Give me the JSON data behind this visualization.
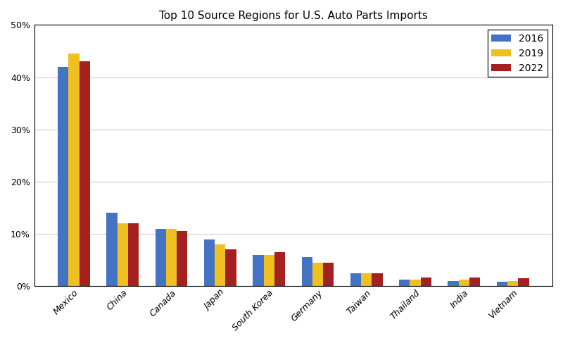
{
  "title": "Top 10 Source Regions for U.S. Auto Parts Imports",
  "categories": [
    "Mexico",
    "China",
    "Canada",
    "Japan",
    "South Korea",
    "Germany",
    "Taiwan",
    "Thailand",
    "India",
    "Vietnam"
  ],
  "years": [
    "2016",
    "2019",
    "2022"
  ],
  "values": {
    "2016": [
      42.0,
      14.0,
      11.0,
      9.0,
      6.0,
      5.5,
      2.5,
      1.2,
      1.0,
      0.8
    ],
    "2019": [
      44.5,
      12.0,
      11.0,
      8.0,
      6.0,
      4.5,
      2.5,
      1.2,
      1.2,
      1.0
    ],
    "2022": [
      43.0,
      12.0,
      10.5,
      7.0,
      6.5,
      4.5,
      2.5,
      1.7,
      1.7,
      1.5
    ]
  },
  "colors": {
    "2016": "#4472C4",
    "2019": "#F0C020",
    "2022": "#A52020"
  },
  "ylim": [
    0,
    50
  ],
  "yticks": [
    0,
    10,
    20,
    30,
    40,
    50
  ],
  "ytick_labels": [
    "0%",
    "10%",
    "20%",
    "30%",
    "40%",
    "50%"
  ],
  "bar_width": 0.22,
  "title_fontsize": 11,
  "tick_fontsize": 9,
  "legend_fontsize": 10,
  "fig_width": 8.0,
  "fig_height": 4.87
}
